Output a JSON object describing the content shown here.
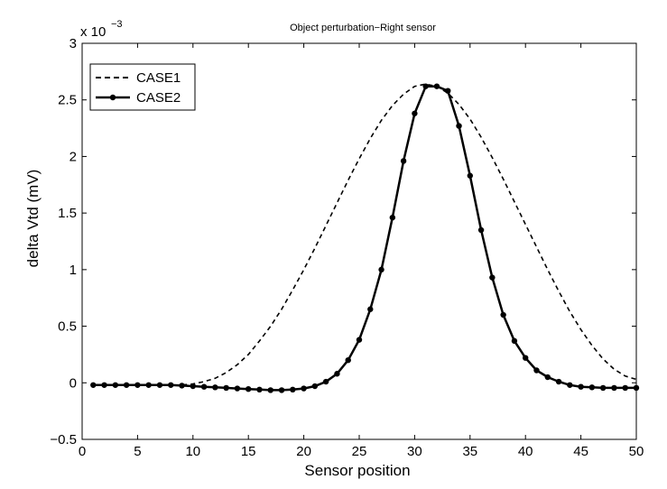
{
  "chart_data": {
    "type": "line",
    "title": "Object perturbation−Right sensor",
    "xlabel": "Sensor position",
    "ylabel": "delta Vtd (mV)",
    "y_multiplier": "x 10",
    "y_multiplier_exponent": "−3",
    "xlim": [
      0,
      50
    ],
    "ylim": [
      -0.5,
      3
    ],
    "xticks": [
      0,
      5,
      10,
      15,
      20,
      25,
      30,
      35,
      40,
      45,
      50
    ],
    "yticks": [
      -0.5,
      0,
      0.5,
      1,
      1.5,
      2,
      2.5,
      3
    ],
    "xtick_labels": [
      "0",
      "5",
      "10",
      "15",
      "20",
      "25",
      "30",
      "35",
      "40",
      "45",
      "50"
    ],
    "ytick_labels": [
      "−0.5",
      "0",
      "0.5",
      "1",
      "1.5",
      "2",
      "2.5",
      "3"
    ],
    "grid": false,
    "legend_position": "top-left",
    "series": [
      {
        "name": "CASE1",
        "style": "dashed",
        "color": "#000000",
        "x": [
          1,
          2,
          3,
          4,
          5,
          6,
          7,
          8,
          9,
          10,
          11,
          12,
          13,
          14,
          15,
          16,
          17,
          18,
          19,
          20,
          21,
          22,
          23,
          24,
          25,
          26,
          27,
          28,
          29,
          30,
          31,
          32,
          33,
          34,
          35,
          36,
          37,
          38,
          39,
          40,
          41,
          42,
          43,
          44,
          45,
          46,
          47,
          48,
          49,
          50
        ],
        "y": [
          -0.02,
          -0.02,
          -0.02,
          -0.02,
          -0.02,
          -0.02,
          -0.02,
          -0.02,
          -0.02,
          -0.01,
          0.01,
          0.04,
          0.09,
          0.16,
          0.25,
          0.37,
          0.5,
          0.65,
          0.82,
          1.0,
          1.19,
          1.39,
          1.59,
          1.79,
          1.98,
          2.16,
          2.32,
          2.45,
          2.55,
          2.62,
          2.64,
          2.62,
          2.56,
          2.46,
          2.33,
          2.17,
          1.99,
          1.8,
          1.6,
          1.4,
          1.2,
          1.0,
          0.81,
          0.63,
          0.47,
          0.33,
          0.21,
          0.12,
          0.06,
          0.03
        ]
      },
      {
        "name": "CASE2",
        "style": "solid-markers",
        "color": "#000000",
        "x": [
          1,
          2,
          3,
          4,
          5,
          6,
          7,
          8,
          9,
          10,
          11,
          12,
          13,
          14,
          15,
          16,
          17,
          18,
          19,
          20,
          21,
          22,
          23,
          24,
          25,
          26,
          27,
          28,
          29,
          30,
          31,
          32,
          33,
          34,
          35,
          36,
          37,
          38,
          39,
          40,
          41,
          42,
          43,
          44,
          45,
          46,
          47,
          48,
          49,
          50
        ],
        "y": [
          -0.02,
          -0.02,
          -0.02,
          -0.02,
          -0.02,
          -0.02,
          -0.02,
          -0.02,
          -0.025,
          -0.03,
          -0.035,
          -0.04,
          -0.045,
          -0.05,
          -0.055,
          -0.06,
          -0.065,
          -0.065,
          -0.06,
          -0.05,
          -0.03,
          0.01,
          0.08,
          0.2,
          0.38,
          0.65,
          1.0,
          1.46,
          1.96,
          2.38,
          2.62,
          2.62,
          2.58,
          2.27,
          1.83,
          1.35,
          0.93,
          0.6,
          0.37,
          0.22,
          0.11,
          0.05,
          0.01,
          -0.02,
          -0.035,
          -0.04,
          -0.045,
          -0.045,
          -0.045,
          -0.045
        ]
      }
    ]
  }
}
